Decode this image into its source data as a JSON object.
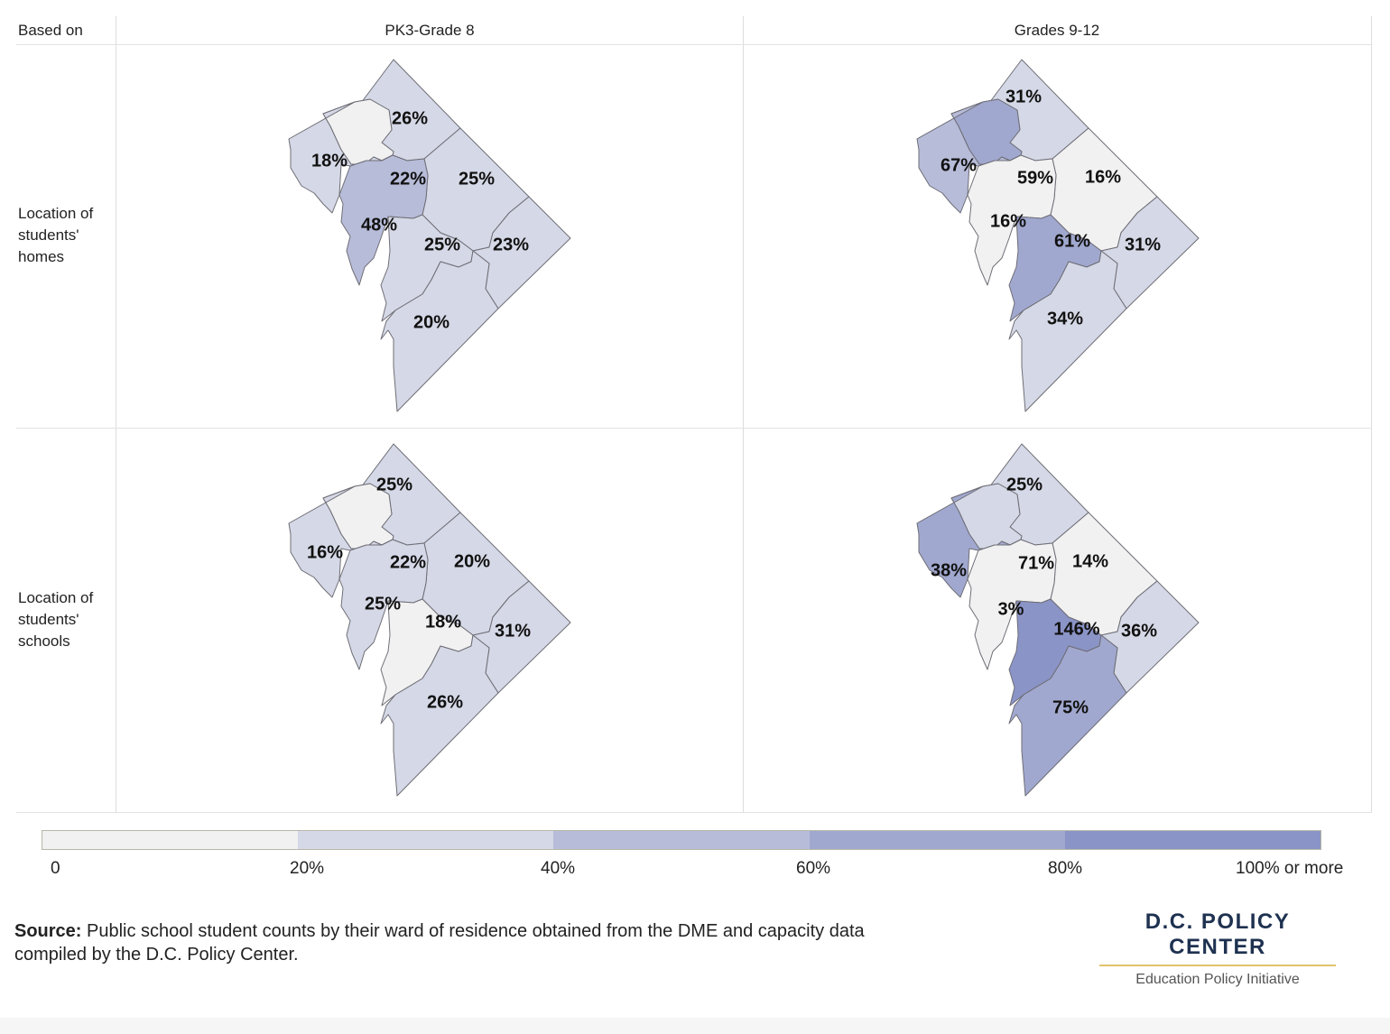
{
  "header": {
    "corner_label": "Based on",
    "col_left": "PK3-Grade 8",
    "col_right": "Grades 9-12"
  },
  "rows": {
    "homes_label": "Location of students' homes",
    "schools_label": "Location of students' schools"
  },
  "colors": {
    "bins": [
      "#f1f1f2",
      "#d5d8e6",
      "#b7bcd9",
      "#a1a8cf",
      "#8b94c7"
    ],
    "border": "#6e6e76"
  },
  "maps": {
    "pk8_homes": {
      "values": [
        26,
        18,
        22,
        25,
        48,
        25,
        23,
        20
      ]
    },
    "hs_homes": {
      "values": [
        31,
        67,
        59,
        16,
        16,
        61,
        31,
        34
      ]
    },
    "pk8_schools": {
      "values": [
        25,
        16,
        22,
        20,
        25,
        18,
        31,
        26
      ]
    },
    "hs_schools": {
      "values": [
        25,
        38,
        71,
        14,
        3,
        146,
        36,
        75
      ]
    }
  },
  "legend": {
    "ticks": [
      "0",
      "20%",
      "40%",
      "60%",
      "80%",
      "100% or more"
    ]
  },
  "source": {
    "lead": "Source:",
    "text": " Public school student counts by their ward of residence obtained from the DME  and capacity data compiled by the D.C. Policy Center."
  },
  "brand": {
    "name": "D.C. POLICY CENTER",
    "subtitle": "Education Policy Initiative"
  }
}
